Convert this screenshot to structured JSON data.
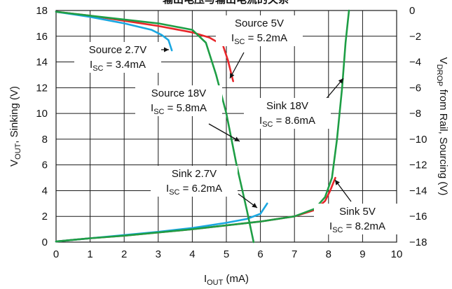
{
  "chart_data": {
    "type": "line",
    "title": "输出电压与输出电流的关系",
    "xlabel": "I",
    "xlabel_sub": "OUT",
    "xlabel_unit": " (mA)",
    "ylabel": "V",
    "ylabel_sub": "OUT",
    "ylabel_rest": ", Sinking (V)",
    "y2label": "V",
    "y2label_sub": "DROP",
    "y2label_rest": " from Rail, Sourcing (V)",
    "xlim": [
      0,
      10
    ],
    "ylim": [
      0,
      18
    ],
    "y2lim": [
      -18,
      0
    ],
    "grid": true,
    "x_ticks": [
      "0",
      "1",
      "2",
      "3",
      "4",
      "5",
      "6",
      "7",
      "8",
      "9",
      "10"
    ],
    "y_ticks": [
      "0",
      "2",
      "4",
      "6",
      "8",
      "10",
      "12",
      "14",
      "16",
      "18"
    ],
    "y2_ticks": [
      "-18",
      "-16",
      "-14",
      "-12",
      "-10",
      "-8",
      "-6",
      "-4",
      "-2",
      "0"
    ],
    "colors": {
      "source_5v": "#e8262a",
      "series_2_7v": "#1aa7e1",
      "series_18v": "#1e9e45"
    },
    "series": [
      {
        "key": "source_5v",
        "color": "#e8262a",
        "x": [
          0,
          1,
          2,
          3,
          4,
          4.5,
          4.9,
          5.05,
          5.2
        ],
        "y": [
          17.9,
          17.6,
          17.2,
          16.8,
          16.3,
          15.9,
          15.3,
          14.1,
          12.5
        ]
      },
      {
        "key": "sink_5v",
        "color": "#e8262a",
        "x": [
          0,
          1,
          2,
          3,
          4,
          5,
          6,
          7,
          7.6,
          7.9,
          8.05,
          8.2
        ],
        "y": [
          0.05,
          0.3,
          0.5,
          0.75,
          1.0,
          1.3,
          1.6,
          2.0,
          2.5,
          3.2,
          4.0,
          5.0
        ]
      },
      {
        "key": "source_2_7v",
        "color": "#1aa7e1",
        "x": [
          0,
          1,
          2,
          2.8,
          3.1,
          3.3,
          3.4
        ],
        "y": [
          17.9,
          17.5,
          17.0,
          16.5,
          16.1,
          15.7,
          14.9
        ]
      },
      {
        "key": "sink_2_7v",
        "color": "#1aa7e1",
        "x": [
          0,
          1,
          2,
          3,
          4,
          5,
          5.6,
          6.0,
          6.2
        ],
        "y": [
          0.05,
          0.3,
          0.55,
          0.8,
          1.1,
          1.5,
          1.8,
          2.2,
          3.0
        ]
      },
      {
        "key": "source_18v",
        "color": "#1e9e45",
        "x": [
          0,
          1,
          2,
          3,
          4,
          4.4,
          4.7,
          5.0,
          5.3,
          5.6,
          5.8
        ],
        "y": [
          17.9,
          17.6,
          17.3,
          17.0,
          16.5,
          15.5,
          13.0,
          10.0,
          6.0,
          2.5,
          0
        ]
      },
      {
        "key": "sink_18v",
        "color": "#1e9e45",
        "x": [
          0,
          1,
          2,
          3,
          4,
          5,
          6,
          7,
          7.6,
          7.9,
          8.1,
          8.25,
          8.4,
          8.5,
          8.6
        ],
        "y": [
          0.05,
          0.3,
          0.5,
          0.75,
          1.0,
          1.3,
          1.6,
          2.0,
          2.6,
          3.5,
          5.0,
          8.0,
          12.0,
          15.5,
          18.0
        ]
      }
    ],
    "annotations": [
      {
        "line1": "Source 5V",
        "line2_pre": "I",
        "line2_sub": "SC",
        "line2_post": " = 5.2mA"
      },
      {
        "line1": "Source 2.7V",
        "line2_pre": "I",
        "line2_sub": "SC",
        "line2_post": " = 3.4mA"
      },
      {
        "line1": "Source 18V",
        "line2_pre": "I",
        "line2_sub": "SC",
        "line2_post": " = 5.8mA"
      },
      {
        "line1": "Sink 18V",
        "line2_pre": "I",
        "line2_sub": "SC",
        "line2_post": " = 8.6mA"
      },
      {
        "line1": "Sink 2.7V",
        "line2_pre": "I",
        "line2_sub": "SC",
        "line2_post": " = 6.2mA"
      },
      {
        "line1": "Sink 5V",
        "line2_pre": "I",
        "line2_sub": "SC",
        "line2_post": " = 8.2mA"
      }
    ]
  }
}
